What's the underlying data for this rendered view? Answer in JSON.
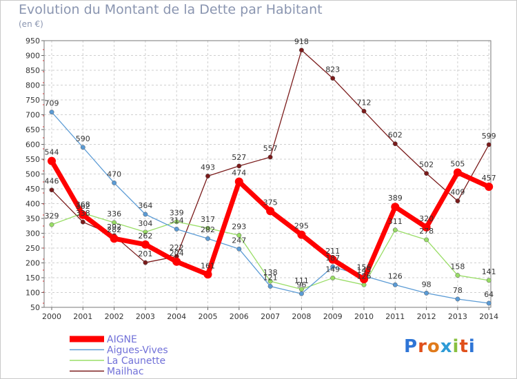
{
  "title": "Evolution du Montant de la Dette par Habitant",
  "unit": "(en €)",
  "brand": "Proxiti",
  "chart_data": {
    "type": "line",
    "x": [
      2000,
      2001,
      2002,
      2003,
      2004,
      2005,
      2006,
      2007,
      2008,
      2009,
      2010,
      2011,
      2012,
      2013,
      2014
    ],
    "ylim": [
      50,
      950
    ],
    "yticks": [
      50,
      100,
      150,
      200,
      250,
      300,
      350,
      400,
      450,
      500,
      550,
      600,
      650,
      700,
      750,
      800,
      850,
      900,
      950
    ],
    "grid": true,
    "legend_position": "bottom-left",
    "series": [
      {
        "name": "Mailhac",
        "color": "#7a1b1b",
        "values": [
          446,
          338,
          292,
          201,
          222,
          493,
          527,
          557,
          918,
          823,
          712,
          602,
          502,
          409,
          599
        ]
      },
      {
        "name": "La Caunette",
        "color": "#99dd66",
        "values": [
          329,
          368,
          336,
          304,
          339,
          317,
          293,
          138,
          111,
          149,
          126,
          311,
          278,
          158,
          141
        ]
      },
      {
        "name": "Aigues-Vives",
        "color": "#5b9bd5",
        "values": [
          709,
          590,
          470,
          364,
          314,
          282,
          247,
          121,
          96,
          187,
          156,
          126,
          98,
          78,
          64
        ]
      },
      {
        "name": "AIGNE",
        "color": "#ff0000",
        "values": [
          544,
          362,
          282,
          262,
          204,
          161,
          474,
          375,
          295,
          211,
          145,
          389,
          320,
          505,
          457
        ]
      }
    ]
  }
}
